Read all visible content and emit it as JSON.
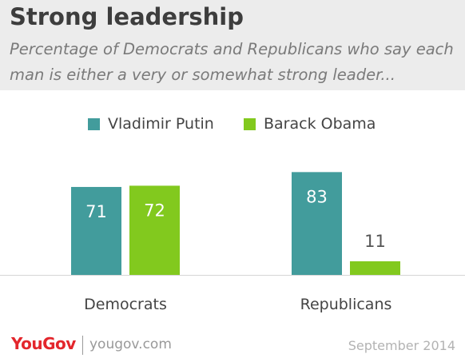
{
  "header": {
    "title": "Strong leadership",
    "subtitle": "Percentage of Democrats and Republicans who say each man is either a very or somewhat strong leader..."
  },
  "legend": [
    {
      "label": "Vladimir Putin",
      "color": "#429c9c"
    },
    {
      "label": "Barack Obama",
      "color": "#82c91e"
    }
  ],
  "chart_data": {
    "type": "bar",
    "title": "Strong leadership",
    "subtitle": "Percentage of Democrats and Republicans who say each man is either a very or somewhat strong leader...",
    "categories": [
      "Democrats",
      "Republicans"
    ],
    "series": [
      {
        "name": "Vladimir Putin",
        "values": [
          71,
          83
        ],
        "color": "#429c9c"
      },
      {
        "name": "Barack Obama",
        "values": [
          72,
          11
        ],
        "color": "#82c91e"
      }
    ],
    "ylim": [
      0,
      100
    ],
    "grid": false,
    "legend_position": "top-center"
  },
  "footer": {
    "brand": "YouGov",
    "url": "yougov.com",
    "date": "September 2014"
  }
}
